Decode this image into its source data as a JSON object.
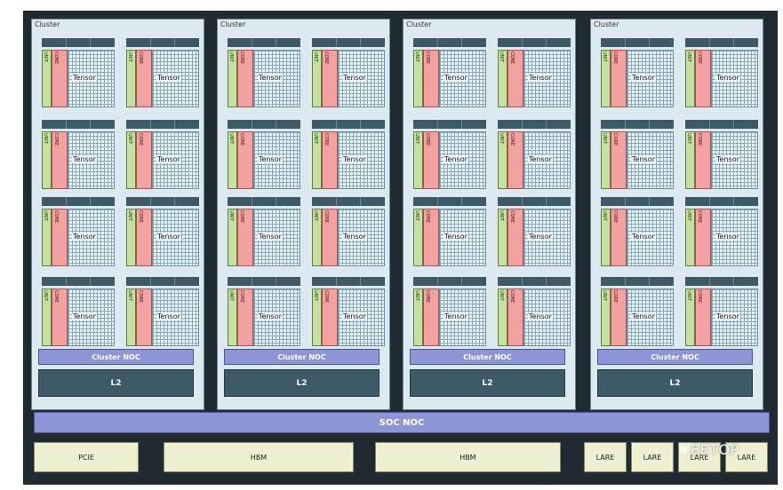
{
  "cluster_label": "Cluster",
  "tensor_label": "Tensor",
  "core_vertical_labels": {
    "green": "UNIT",
    "pink": "CORE"
  },
  "cluster_noc_label": "Cluster NOC",
  "l2_label": "L2",
  "soc_noc_label": "SOC NOC",
  "io_blocks": [
    {
      "label": "PCIE"
    },
    {
      "label": "HBM"
    },
    {
      "label": "HBM"
    },
    {
      "label": "LARE"
    },
    {
      "label": "LARE"
    },
    {
      "label": "LARE"
    },
    {
      "label": "LARE"
    }
  ],
  "watermark": {
    "text": "EETOP",
    "icon": "wechat-icon"
  },
  "colors": {
    "background": "#1f2a33",
    "cluster_fill": "#dde9f0",
    "noc": "#8d95d6",
    "l2": "#3d5a66",
    "io": "#eff0d2",
    "green": "#c6e0a0",
    "pink": "#f3a2a2"
  }
}
